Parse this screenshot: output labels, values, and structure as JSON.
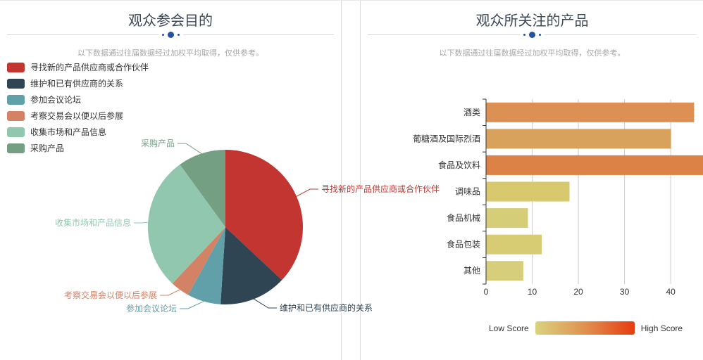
{
  "panels": [
    {
      "title": "观众参会目的",
      "subtitle": "以下数据通过往届数据经过加权平均取得，仅供参考。"
    },
    {
      "title": "观众所关注的产品",
      "subtitle": "以下数据通过往届数据经过加权平均取得，仅供参考。"
    }
  ],
  "colors": {
    "divider_dot": "#2152a3",
    "axis_text": "#333333",
    "gridline": "#cccccc",
    "axis_line": "#333333"
  },
  "visualmap": {
    "low_label": "Low Score",
    "high_label": "High Score",
    "gradient": [
      "#d9d37f",
      "#e0914f",
      "#e63c10"
    ]
  },
  "chart_data": [
    {
      "type": "pie",
      "title": "观众参会目的",
      "subtitle": "以下数据通过往届数据经过加权平均取得，仅供参考。",
      "legend_position": "top-left",
      "value_unit": "percent (estimated from slice angles)",
      "series": [
        {
          "name": "寻找新的产品供应商或合作伙伴",
          "value": 37,
          "color": "#c23531"
        },
        {
          "name": "维护和已有供应商的关系",
          "value": 14,
          "color": "#2f4554"
        },
        {
          "name": "参加会议论坛",
          "value": 7,
          "color": "#61a0a8"
        },
        {
          "name": "考察交易会以便以后参展",
          "value": 4,
          "color": "#d48265"
        },
        {
          "name": "收集市场和产品信息",
          "value": 28,
          "color": "#91c7ae"
        },
        {
          "name": "采购产品",
          "value": 10,
          "color": "#749f83"
        }
      ]
    },
    {
      "type": "bar",
      "orientation": "horizontal",
      "title": "观众所关注的产品",
      "subtitle": "以下数据通过往届数据经过加权平均取得，仅供参考。",
      "categories": [
        "酒类",
        "葡糖酒及国际烈酒",
        "食品及饮料",
        "调味品",
        "食品机械",
        "食品包装",
        "其他"
      ],
      "values": [
        45,
        40,
        47,
        18,
        9,
        12,
        8
      ],
      "bar_colors": [
        "#dc9053",
        "#d9a25c",
        "#dd8247",
        "#d8c96e",
        "#d6cd78",
        "#d7cb73",
        "#d6ce7a"
      ],
      "xticks": [
        0,
        10,
        20,
        30,
        40
      ],
      "xlim": [
        0,
        47
      ],
      "grid": true,
      "legend": "visualmap Low Score → High Score"
    }
  ]
}
